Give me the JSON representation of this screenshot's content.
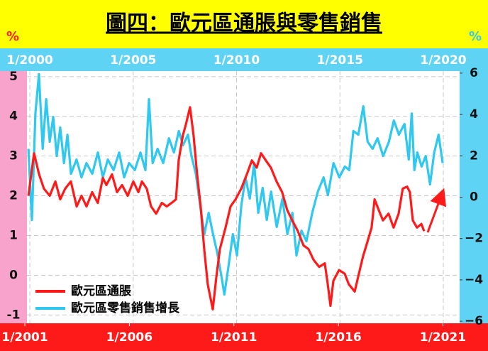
{
  "chart_data": {
    "type": "line",
    "title": "圖四：歐元區通脹與零售銷售",
    "y_label": "%",
    "y2_label": "%",
    "xlim": [
      1999.86,
      2020.79
    ],
    "xticks": [
      {
        "value": 2000,
        "label": "1/2000"
      },
      {
        "value": 2005,
        "label": "1/2005"
      },
      {
        "value": 2010,
        "label": "1/2010"
      },
      {
        "value": 2015,
        "label": "1/2015"
      },
      {
        "value": 2020,
        "label": "1/2020"
      }
    ],
    "x2lim": [
      2001.1,
      2021.8
    ],
    "x2ticks": [
      {
        "value": 2001,
        "label": "1/2001"
      },
      {
        "value": 2006,
        "label": "1/2006"
      },
      {
        "value": 2011,
        "label": "1/2011"
      },
      {
        "value": 2016,
        "label": "1/2016"
      },
      {
        "value": 2021,
        "label": "1/2021"
      }
    ],
    "ylim": [
      -1.21,
      5.14
    ],
    "yticks": [
      5,
      4,
      3,
      2,
      1,
      0,
      -1
    ],
    "y2lim": [
      -6.1,
      6.1
    ],
    "y2ticks": [
      6,
      4,
      2,
      0,
      {
        "value": -2,
        "label": "−2"
      },
      {
        "value": -4,
        "label": "−4"
      },
      {
        "value": -6,
        "label": "−6"
      }
    ],
    "grid": true,
    "series": [
      {
        "name": "歐元區通脹",
        "color": "#ff1a1a",
        "axis": "y",
        "xaxis": "x2",
        "x": [
          2001.17,
          2001.44,
          2001.68,
          2001.91,
          2002.19,
          2002.46,
          2002.69,
          2002.93,
          2003.2,
          2003.48,
          2003.71,
          2003.95,
          2004.22,
          2004.49,
          2004.73,
          2004.9,
          2005.17,
          2005.41,
          2005.65,
          2005.92,
          2006.19,
          2006.43,
          2006.6,
          2006.83,
          2007.04,
          2007.28,
          2007.55,
          2007.79,
          2008.02,
          2008.23,
          2008.36,
          2008.56,
          2008.7,
          2008.9,
          2009.07,
          2009.24,
          2009.41,
          2009.58,
          2009.75,
          2009.99,
          2010.16,
          2010.33,
          2010.6,
          2010.84,
          2011.08,
          2011.35,
          2011.62,
          2011.86,
          2012.09,
          2012.3,
          2012.53,
          2012.77,
          2013.04,
          2013.31,
          2013.55,
          2013.79,
          2014.06,
          2014.33,
          2014.57,
          2014.81,
          2015.08,
          2015.35,
          2015.49,
          2015.62,
          2015.76,
          2016.03,
          2016.3,
          2016.5,
          2016.78,
          2016.98,
          2017.18,
          2017.39,
          2017.59,
          2017.73,
          2017.93,
          2018.13,
          2018.4,
          2018.64,
          2018.88,
          2019.08,
          2019.29,
          2019.42,
          2019.56,
          2019.76,
          2019.97,
          2020.1
        ],
        "values": [
          2.0,
          3.07,
          2.54,
          2.18,
          2.0,
          2.36,
          1.91,
          2.18,
          2.36,
          1.73,
          2.0,
          1.73,
          2.09,
          1.82,
          2.45,
          2.27,
          2.54,
          2.09,
          2.27,
          2.0,
          2.36,
          2.09,
          2.36,
          2.18,
          1.73,
          1.55,
          1.82,
          1.73,
          1.82,
          1.91,
          2.89,
          3.52,
          3.79,
          4.23,
          3.52,
          2.54,
          1.73,
          0.66,
          -0.23,
          -0.86,
          -0.05,
          0.66,
          1.2,
          1.73,
          1.91,
          2.18,
          2.54,
          2.89,
          2.71,
          3.07,
          2.89,
          2.71,
          2.36,
          2.09,
          1.64,
          1.38,
          1.11,
          0.75,
          0.66,
          0.39,
          0.21,
          0.3,
          -0.23,
          -0.77,
          -0.14,
          0.13,
          0.04,
          -0.23,
          -0.41,
          0.04,
          0.48,
          0.84,
          1.2,
          1.91,
          1.64,
          1.38,
          1.55,
          1.2,
          1.55,
          2.18,
          2.23,
          2.09,
          1.38,
          1.2,
          1.29,
          1.11
        ]
      },
      {
        "name": "歐元區零售銷售增長",
        "color": "#2ec8f0",
        "axis": "y2",
        "xaxis": "x",
        "x": [
          1999.93,
          2000.1,
          2000.27,
          2000.44,
          2000.62,
          2000.79,
          2000.96,
          2001.13,
          2001.3,
          2001.47,
          2001.65,
          2001.82,
          2001.99,
          2002.26,
          2002.5,
          2002.74,
          2003.02,
          2003.29,
          2003.53,
          2003.77,
          2004.05,
          2004.32,
          2004.56,
          2004.8,
          2005.08,
          2005.35,
          2005.59,
          2005.76,
          2005.94,
          2006.18,
          2006.45,
          2006.73,
          2006.97,
          2007.21,
          2007.41,
          2007.65,
          2007.82,
          2008.03,
          2008.24,
          2008.44,
          2008.65,
          2008.86,
          2009.06,
          2009.27,
          2009.41,
          2009.61,
          2009.82,
          2010.02,
          2010.23,
          2010.43,
          2010.64,
          2010.85,
          2011.05,
          2011.26,
          2011.46,
          2011.67,
          2011.94,
          2012.22,
          2012.46,
          2012.7,
          2012.9,
          2013.14,
          2013.38,
          2013.66,
          2013.93,
          2014.21,
          2014.42,
          2014.69,
          2014.97,
          2015.24,
          2015.45,
          2015.65,
          2015.89,
          2016.13,
          2016.34,
          2016.58,
          2016.82,
          2017.09,
          2017.37,
          2017.61,
          2017.85,
          2018.12,
          2018.33,
          2018.47,
          2018.6,
          2018.74,
          2018.95,
          2019.15,
          2019.36,
          2019.56,
          2019.77,
          2019.97
        ],
        "values": [
          2.34,
          -1.1,
          4.05,
          5.95,
          2.34,
          4.74,
          2.68,
          3.88,
          1.99,
          3.37,
          1.65,
          3.02,
          1.13,
          1.82,
          0.96,
          1.65,
          1.13,
          2.16,
          0.96,
          1.82,
          1.31,
          2.16,
          0.96,
          1.65,
          1.31,
          2.16,
          1.31,
          4.74,
          1.65,
          2.34,
          1.65,
          2.85,
          2.16,
          3.2,
          2.51,
          3.02,
          1.99,
          1.13,
          -0.41,
          -1.79,
          -0.76,
          -1.79,
          -2.65,
          -3.85,
          -4.71,
          -3.33,
          -1.79,
          -2.82,
          -0.41,
          0.96,
          -0.07,
          1.65,
          -0.76,
          0.45,
          -1.1,
          0.27,
          -1.44,
          -0.07,
          -1.79,
          -0.76,
          -2.82,
          -1.62,
          -2.13,
          -0.76,
          0.27,
          0.96,
          0.1,
          1.65,
          0.96,
          1.48,
          1.31,
          3.2,
          3.02,
          4.4,
          2.68,
          2.34,
          2.85,
          1.99,
          2.68,
          3.71,
          3.02,
          3.54,
          1.82,
          4.05,
          1.31,
          2.16,
          1.48,
          1.99,
          0.62,
          2.16,
          3.02,
          1.65
        ]
      }
    ]
  }
}
